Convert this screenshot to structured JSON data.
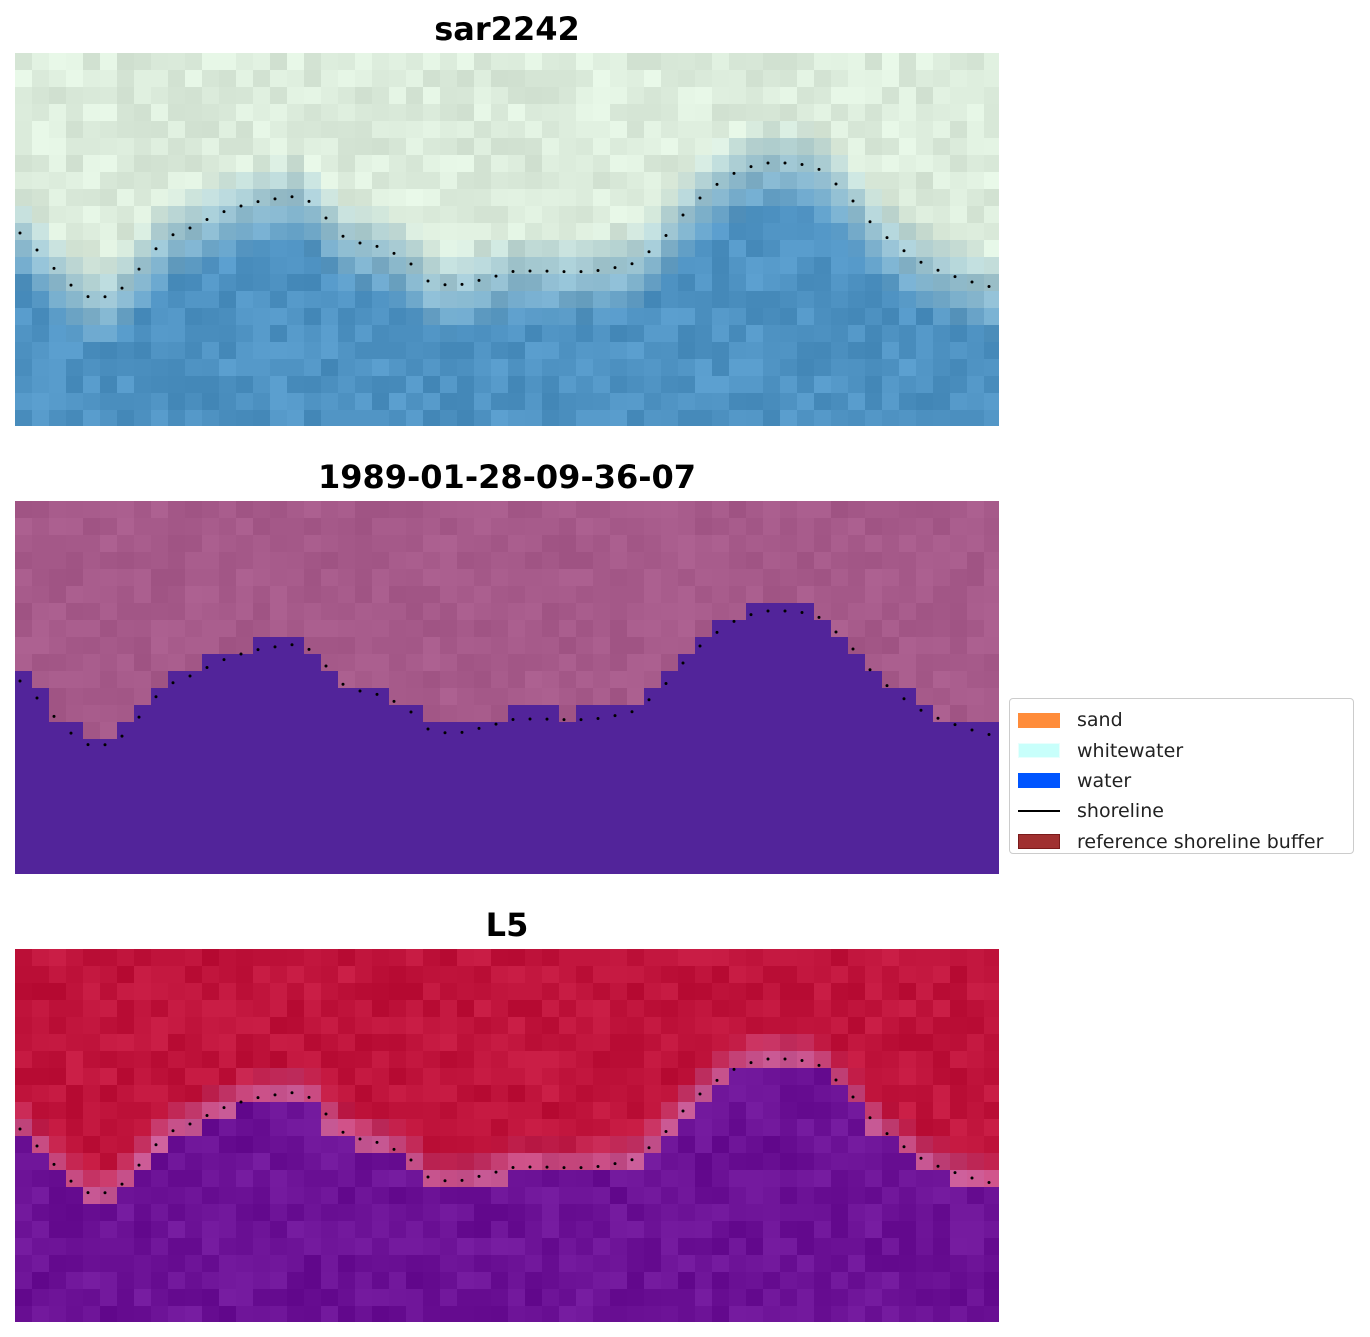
{
  "panels": [
    {
      "title": "sar2242",
      "name": "rgb-image"
    },
    {
      "title": "1989-01-28-09-36-07",
      "name": "classified-image"
    },
    {
      "title": "L5",
      "name": "index-image"
    }
  ],
  "legend": {
    "items": [
      {
        "label": "sand",
        "color": "#ff8c3a",
        "kind": "patch"
      },
      {
        "label": "whitewater",
        "color": "#c8fffb",
        "kind": "patch"
      },
      {
        "label": "water",
        "color": "#0055ff",
        "kind": "patch"
      },
      {
        "label": "shoreline",
        "color": "#000000",
        "kind": "line"
      },
      {
        "label": "reference shoreline buffer",
        "color": "#a03030",
        "kind": "patch"
      }
    ]
  },
  "colors": {
    "sar_water": "#4f93c3",
    "sar_land": "#dcecdc",
    "classified_land": "#a65a8a",
    "classified_water": "#52249a",
    "index_land": "#c0143c",
    "index_water": "#6c1296",
    "shoreline_dots": "#000000"
  }
}
